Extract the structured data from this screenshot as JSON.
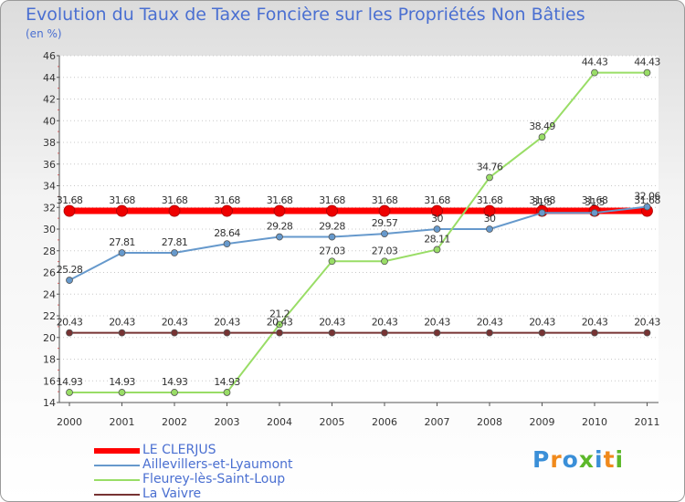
{
  "chart_data": {
    "type": "line",
    "title": "Evolution du Taux de Taxe Foncière sur les Propriétés Non Bâties",
    "ylabel": "(en %)",
    "xlabel": "",
    "ylim": [
      14,
      46
    ],
    "yticks": [
      14,
      16,
      18,
      20,
      22,
      24,
      26,
      28,
      30,
      32,
      34,
      36,
      38,
      40,
      42,
      44,
      46
    ],
    "categories": [
      "2000",
      "2001",
      "2002",
      "2003",
      "2004",
      "2005",
      "2006",
      "2007",
      "2008",
      "2009",
      "2010",
      "2011"
    ],
    "grid": "horizontal dotted",
    "legend_position": "bottom-left",
    "series": [
      {
        "name": "LE CLERJUS",
        "color": "#ff0000",
        "values": [
          31.68,
          31.68,
          31.68,
          31.68,
          31.68,
          31.68,
          31.68,
          31.68,
          31.68,
          31.68,
          31.68,
          31.68
        ],
        "labels": [
          "31.68",
          "31.68",
          "31.68",
          "31.68",
          "31.68",
          "31.68",
          "31.68",
          "31.68",
          "31.68",
          "31.68",
          "31.68",
          "31.68"
        ]
      },
      {
        "name": "Aillevillers-et-Lyaumont",
        "color": "#6699cc",
        "values": [
          25.28,
          27.81,
          27.81,
          28.64,
          29.28,
          29.28,
          29.57,
          30,
          30,
          31.5,
          31.5,
          32.06
        ],
        "labels": [
          "25.28",
          "27.81",
          "27.81",
          "28.64",
          "29.28",
          "29.28",
          "29.57",
          "30",
          "30",
          "31.5",
          "31.5",
          "32.06"
        ]
      },
      {
        "name": "Fleurey-lès-Saint-Loup",
        "color": "#99dd66",
        "values": [
          14.93,
          14.93,
          14.93,
          14.93,
          21.2,
          27.03,
          27.03,
          28.11,
          34.76,
          38.49,
          44.43,
          44.43
        ],
        "labels": [
          "14.93",
          "14.93",
          "14.93",
          "14.93",
          "21.2",
          "27.03",
          "27.03",
          "28.11",
          "34.76",
          "38.49",
          "44.43",
          "44.43"
        ]
      },
      {
        "name": "La Vaivre",
        "color": "#773333",
        "values": [
          20.43,
          20.43,
          20.43,
          20.43,
          20.43,
          20.43,
          20.43,
          20.43,
          20.43,
          20.43,
          20.43,
          20.43
        ],
        "labels": [
          "20.43",
          "20.43",
          "20.43",
          "20.43",
          "20.43",
          "20.43",
          "20.43",
          "20.43",
          "20.43",
          "20.43",
          "20.43",
          "20.43"
        ]
      }
    ]
  },
  "logo": {
    "text": "Proxiti"
  }
}
